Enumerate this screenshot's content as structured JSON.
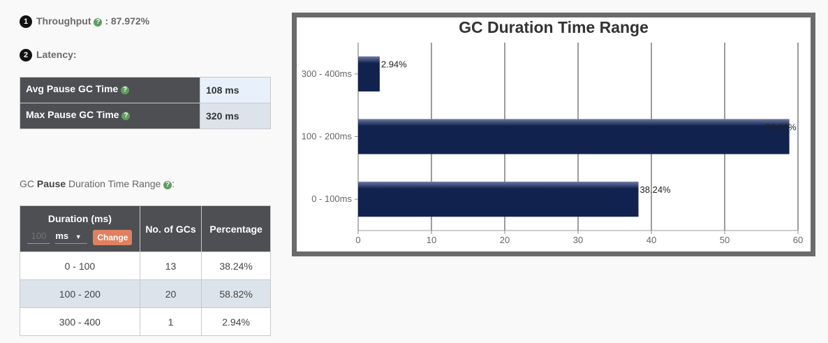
{
  "throughput": {
    "label": "Throughput",
    "value": ": 87.972%",
    "badge": "1"
  },
  "latency": {
    "label": "Latency:",
    "badge": "2",
    "rows": [
      {
        "label": "Avg Pause GC Time",
        "value": "108 ms"
      },
      {
        "label": "Max Pause GC Time",
        "value": "320 ms"
      }
    ]
  },
  "range_section": {
    "prefix": "GC ",
    "bold": "Pause",
    "suffix": " Duration Time Range",
    "colon": ":"
  },
  "range_table": {
    "headers": {
      "duration": "Duration (ms)",
      "count": "No. of GCs",
      "percentage": "Percentage"
    },
    "duration_placeholder": "100",
    "unit_selected": "ms",
    "change_label": "Change",
    "rows": [
      {
        "range": "0 - 100",
        "count": "13",
        "percentage": "38.24%"
      },
      {
        "range": "100 - 200",
        "count": "20",
        "percentage": "58.82%"
      },
      {
        "range": "300 - 400",
        "count": "1",
        "percentage": "2.94%"
      }
    ]
  },
  "chart_data": {
    "type": "bar",
    "orientation": "horizontal",
    "title": "GC Duration Time Range",
    "categories": [
      "300 - 400ms",
      "100 - 200ms",
      "0 - 100ms"
    ],
    "values": [
      2.94,
      58.82,
      38.24
    ],
    "data_labels": [
      "2.94%",
      "58.82%",
      "38.24%"
    ],
    "xlim": [
      0,
      60
    ],
    "xticks": [
      0,
      10,
      20,
      30,
      40,
      50,
      60
    ],
    "grid": true,
    "bar_color": "#11224f"
  }
}
